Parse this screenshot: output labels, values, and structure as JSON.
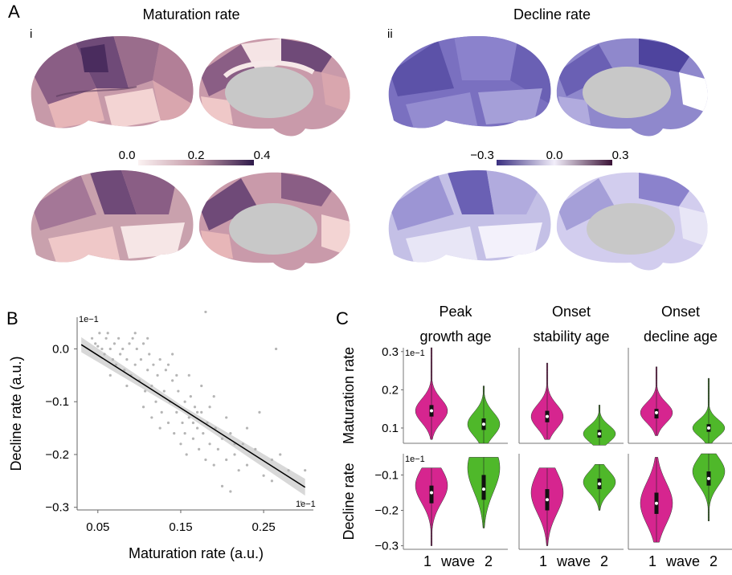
{
  "panel_labels": {
    "a": "A",
    "b": "B",
    "c": "C",
    "ai": "i",
    "aii": "ii"
  },
  "colors": {
    "magenta": "#d6258f",
    "green": "#4fb82a",
    "scatter": "#b5b5b5",
    "fit": "#000000",
    "ci": "#d4d4d4",
    "maturation_scale": [
      "#fbe6e6",
      "#e7b6b8",
      "#b27f97",
      "#6f4a78",
      "#2f1a4a"
    ],
    "decline_scale": [
      "#3a2f80",
      "#8076c4",
      "#f2eefa",
      "#b06e8d",
      "#3a1236"
    ]
  },
  "chart_data": [
    {
      "type": "heatmap",
      "panel": "A-i",
      "title": "Maturation rate",
      "colorbar": {
        "min": 0.0,
        "max": 0.4,
        "ticks": [
          "0.0",
          "0.2",
          "0.4"
        ]
      }
    },
    {
      "type": "heatmap",
      "panel": "A-ii",
      "title": "Decline rate",
      "colorbar": {
        "min": -0.3,
        "max": 0.3,
        "ticks": [
          "−0.3",
          "0.0",
          "0.3"
        ]
      }
    },
    {
      "type": "scatter",
      "panel": "B",
      "xlabel": "Maturation rate (a.u.)",
      "ylabel": "Decline rate (a.u.)",
      "x_multiplier": "1e−1",
      "y_multiplier": "1e−1",
      "xlim": [
        0.025,
        0.31
      ],
      "ylim": [
        -0.305,
        0.06
      ],
      "xticks": [
        "0.05",
        "0.15",
        "0.25"
      ],
      "yticks": [
        "0.0",
        "−0.1",
        "−0.2",
        "−0.3"
      ],
      "fit": {
        "x": [
          0.03,
          0.3
        ],
        "y": [
          0.008,
          -0.262
        ]
      },
      "points": [
        [
          0.043,
          0.02
        ],
        [
          0.047,
          0.01
        ],
        [
          0.05,
          0.005
        ],
        [
          0.052,
          0.03
        ],
        [
          0.055,
          0.0
        ],
        [
          0.058,
          -0.01
        ],
        [
          0.06,
          0.02
        ],
        [
          0.062,
          0.03
        ],
        [
          0.065,
          0.0
        ],
        [
          0.068,
          -0.02
        ],
        [
          0.07,
          0.01
        ],
        [
          0.072,
          -0.03
        ],
        [
          0.075,
          0.02
        ],
        [
          0.077,
          -0.01
        ],
        [
          0.08,
          0.0
        ],
        [
          0.082,
          -0.04
        ],
        [
          0.085,
          -0.02
        ],
        [
          0.088,
          0.01
        ],
        [
          0.09,
          -0.05
        ],
        [
          0.092,
          0.02
        ],
        [
          0.095,
          -0.03
        ],
        [
          0.097,
          0.0
        ],
        [
          0.1,
          -0.06
        ],
        [
          0.102,
          -0.02
        ],
        [
          0.105,
          0.01
        ],
        [
          0.107,
          -0.08
        ],
        [
          0.11,
          -0.04
        ],
        [
          0.112,
          -0.01
        ],
        [
          0.115,
          -0.07
        ],
        [
          0.117,
          -0.03
        ],
        [
          0.12,
          -0.1
        ],
        [
          0.122,
          -0.05
        ],
        [
          0.125,
          -0.02
        ],
        [
          0.127,
          -0.12
        ],
        [
          0.13,
          -0.08
        ],
        [
          0.132,
          -0.04
        ],
        [
          0.135,
          -0.14
        ],
        [
          0.137,
          -0.1
        ],
        [
          0.14,
          -0.06
        ],
        [
          0.142,
          -0.16
        ],
        [
          0.145,
          -0.12
        ],
        [
          0.147,
          -0.08
        ],
        [
          0.15,
          -0.18
        ],
        [
          0.152,
          -0.14
        ],
        [
          0.155,
          -0.1
        ],
        [
          0.157,
          -0.2
        ],
        [
          0.16,
          -0.13
        ],
        [
          0.162,
          -0.09
        ],
        [
          0.165,
          -0.17
        ],
        [
          0.167,
          -0.11
        ],
        [
          0.17,
          -0.15
        ],
        [
          0.172,
          -0.19
        ],
        [
          0.175,
          -0.12
        ],
        [
          0.177,
          -0.16
        ],
        [
          0.18,
          -0.21
        ],
        [
          0.182,
          -0.14
        ],
        [
          0.185,
          -0.18
        ],
        [
          0.19,
          -0.22
        ],
        [
          0.192,
          -0.15
        ],
        [
          0.195,
          -0.19
        ],
        [
          0.2,
          -0.17
        ],
        [
          0.205,
          -0.21
        ],
        [
          0.21,
          -0.16
        ],
        [
          0.215,
          -0.2
        ],
        [
          0.22,
          -0.23
        ],
        [
          0.225,
          -0.18
        ],
        [
          0.23,
          -0.22
        ],
        [
          0.24,
          -0.19
        ],
        [
          0.25,
          -0.24
        ],
        [
          0.26,
          -0.21
        ],
        [
          0.065,
          -0.05
        ],
        [
          0.085,
          -0.07
        ],
        [
          0.095,
          0.03
        ],
        [
          0.11,
          0.02
        ],
        [
          0.125,
          -0.15
        ],
        [
          0.14,
          -0.01
        ],
        [
          0.16,
          -0.05
        ],
        [
          0.175,
          -0.07
        ],
        [
          0.18,
          0.07
        ],
        [
          0.19,
          -0.09
        ],
        [
          0.2,
          -0.26
        ],
        [
          0.21,
          -0.27
        ],
        [
          0.23,
          -0.15
        ],
        [
          0.245,
          -0.12
        ],
        [
          0.26,
          -0.25
        ],
        [
          0.265,
          0.0
        ],
        [
          0.27,
          -0.2
        ],
        [
          0.28,
          -0.23
        ],
        [
          0.295,
          -0.29
        ],
        [
          0.3,
          -0.23
        ],
        [
          0.105,
          -0.11
        ],
        [
          0.115,
          -0.13
        ],
        [
          0.135,
          -0.03
        ],
        [
          0.145,
          -0.05
        ],
        [
          0.155,
          -0.16
        ],
        [
          0.165,
          -0.14
        ],
        [
          0.17,
          -0.12
        ],
        [
          0.185,
          -0.11
        ],
        [
          0.205,
          -0.13
        ],
        [
          0.215,
          -0.18
        ]
      ]
    },
    {
      "type": "violin",
      "panel": "C",
      "columns": [
        "Peak growth age",
        "Onset stability age",
        "Onset decline age"
      ],
      "rows": [
        {
          "ylabel": "Maturation rate",
          "multiplier": "1e−1",
          "ylim": [
            0.06,
            0.31
          ],
          "yticks": [
            "0.3",
            "0.2",
            "0.1"
          ],
          "groups": [
            {
              "wave1": {
                "min": 0.07,
                "q1": 0.13,
                "median": 0.145,
                "q3": 0.16,
                "max": 0.31,
                "mode": 0.145
              },
              "wave2": {
                "min": 0.06,
                "q1": 0.095,
                "median": 0.11,
                "q3": 0.125,
                "max": 0.21,
                "mode": 0.11
              }
            },
            {
              "wave1": {
                "min": 0.07,
                "q1": 0.115,
                "median": 0.13,
                "q3": 0.145,
                "max": 0.27,
                "mode": 0.13
              },
              "wave2": {
                "min": 0.055,
                "q1": 0.075,
                "median": 0.085,
                "q3": 0.095,
                "max": 0.16,
                "mode": 0.085
              }
            },
            {
              "wave1": {
                "min": 0.08,
                "q1": 0.125,
                "median": 0.14,
                "q3": 0.15,
                "max": 0.26,
                "mode": 0.14
              },
              "wave2": {
                "min": 0.06,
                "q1": 0.09,
                "median": 0.1,
                "q3": 0.11,
                "max": 0.23,
                "mode": 0.1
              }
            }
          ]
        },
        {
          "ylabel": "Decline rate",
          "multiplier": "1e−1",
          "ylim": [
            -0.31,
            -0.04
          ],
          "yticks": [
            "−0.1",
            "−0.2",
            "−0.3"
          ],
          "groups": [
            {
              "wave1": {
                "min": -0.3,
                "q1": -0.18,
                "median": -0.15,
                "q3": -0.13,
                "max": -0.08,
                "mode": -0.13
              },
              "wave2": {
                "min": -0.25,
                "q1": -0.17,
                "median": -0.14,
                "q3": -0.1,
                "max": -0.05,
                "mode": -0.08
              }
            },
            {
              "wave1": {
                "min": -0.3,
                "q1": -0.2,
                "median": -0.17,
                "q3": -0.14,
                "max": -0.08,
                "mode": -0.15
              },
              "wave2": {
                "min": -0.2,
                "q1": -0.14,
                "median": -0.125,
                "q3": -0.11,
                "max": -0.07,
                "mode": -0.12
              }
            },
            {
              "wave1": {
                "min": -0.29,
                "q1": -0.21,
                "median": -0.18,
                "q3": -0.15,
                "max": -0.05,
                "mode": -0.18
              },
              "wave2": {
                "min": -0.23,
                "q1": -0.13,
                "median": -0.11,
                "q3": -0.09,
                "max": -0.04,
                "mode": -0.09
              }
            }
          ]
        }
      ],
      "xlabels": {
        "left": "1",
        "middle": "wave",
        "right": "2"
      }
    }
  ]
}
